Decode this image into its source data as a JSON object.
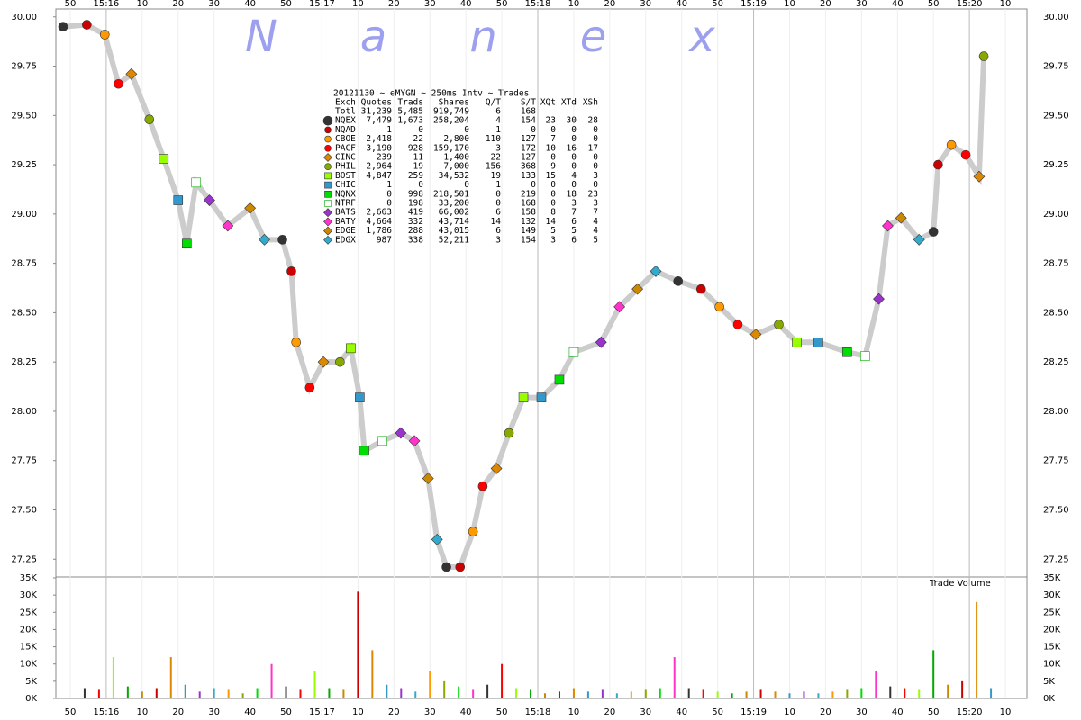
{
  "chart_data": {
    "type": "trades",
    "title": "20121130 ~ eMYGN ~ 250ms Intv ~ Trades",
    "watermark": "Nanex",
    "xlim": [
      46,
      316
    ],
    "xticks": [
      50,
      {
        "value": 60,
        "label": "15:16"
      },
      {
        "value": 70,
        "label": "10"
      },
      {
        "value": 80,
        "label": "20"
      },
      {
        "value": 90,
        "label": "30"
      },
      {
        "value": 100,
        "label": "40"
      },
      {
        "value": 110,
        "label": "50"
      },
      {
        "value": 120,
        "label": "15:17"
      },
      {
        "value": 130,
        "label": "10"
      },
      {
        "value": 140,
        "label": "20"
      },
      {
        "value": 150,
        "label": "30"
      },
      {
        "value": 160,
        "label": "40"
      },
      {
        "value": 170,
        "label": "50"
      },
      {
        "value": 180,
        "label": "15:18"
      },
      {
        "value": 190,
        "label": "10"
      },
      {
        "value": 200,
        "label": "20"
      },
      {
        "value": 210,
        "label": "30"
      },
      {
        "value": 220,
        "label": "40"
      },
      {
        "value": 230,
        "label": "50"
      },
      {
        "value": 240,
        "label": "15:19"
      },
      {
        "value": 250,
        "label": "10"
      },
      {
        "value": 260,
        "label": "20"
      },
      {
        "value": 270,
        "label": "30"
      },
      {
        "value": 280,
        "label": "40"
      },
      {
        "value": 290,
        "label": "50"
      },
      {
        "value": 300,
        "label": "15:20"
      },
      {
        "value": 310,
        "label": "10"
      }
    ],
    "grid": true,
    "price": {
      "ylim": [
        27.16,
        30.04
      ],
      "yticks": [
        {
          "value": 30,
          "label": "30.00"
        },
        29.75,
        {
          "value": 29.5,
          "label": "29.50"
        },
        29.25,
        {
          "value": 29,
          "label": "29.00"
        },
        28.75,
        {
          "value": 28.5,
          "label": "28.50"
        },
        28.25,
        {
          "value": 28,
          "label": "28.00"
        },
        27.75,
        {
          "value": 27.5,
          "label": "27.50"
        },
        27.25
      ],
      "x": [
        48,
        54.6,
        59.6,
        63.4,
        67,
        72,
        76,
        80,
        82.4,
        85,
        88.7,
        93.8,
        100,
        104,
        109,
        111.5,
        112.8,
        116.6,
        120.4,
        125,
        128,
        130.5,
        131.8,
        136.8,
        141.9,
        145.7,
        149.5,
        152,
        154.6,
        158.4,
        162,
        164.7,
        168.5,
        172,
        176,
        181,
        186,
        190,
        197.6,
        202.7,
        207.7,
        212.8,
        219,
        225.4,
        230.5,
        235.6,
        240.6,
        247,
        252,
        258,
        266,
        271,
        274.8,
        277.3,
        281,
        286,
        290,
        291.3,
        295,
        299,
        302.7,
        304
      ],
      "values": [
        29.95,
        29.96,
        29.91,
        29.66,
        29.71,
        29.48,
        29.28,
        29.07,
        28.85,
        29.16,
        29.07,
        28.94,
        29.03,
        28.87,
        28.87,
        28.71,
        28.35,
        28.12,
        28.25,
        28.25,
        28.32,
        28.07,
        27.8,
        27.85,
        27.89,
        27.85,
        27.66,
        27.35,
        27.21,
        27.21,
        27.39,
        27.62,
        27.71,
        27.89,
        28.07,
        28.07,
        28.16,
        28.3,
        28.35,
        28.53,
        28.62,
        28.71,
        28.66,
        28.62,
        28.53,
        28.44,
        28.39,
        28.44,
        28.35,
        28.35,
        28.3,
        28.28,
        28.57,
        28.94,
        28.98,
        28.87,
        28.91,
        29.25,
        29.35,
        29.3,
        29.19,
        29.8
      ]
    },
    "volume": {
      "label": "Trade Volume",
      "ylim": [
        0,
        35000
      ],
      "yticks": [
        {
          "value": 0,
          "label": "0K"
        },
        {
          "value": 5000,
          "label": "5K"
        },
        {
          "value": 10000,
          "label": "10K"
        },
        {
          "value": 15000,
          "label": "15K"
        },
        {
          "value": 20000,
          "label": "20K"
        },
        {
          "value": 25000,
          "label": "25K"
        },
        {
          "value": 30000,
          "label": "30K"
        },
        {
          "value": 35000,
          "label": "35K"
        }
      ],
      "x": [
        54,
        58,
        62,
        66,
        70,
        74,
        78,
        82,
        86,
        90,
        94,
        98,
        102,
        106,
        110,
        114,
        118,
        122,
        126,
        130,
        134,
        138,
        142,
        146,
        150,
        154,
        158,
        162,
        166,
        170,
        174,
        178,
        182,
        186,
        190,
        194,
        198,
        202,
        206,
        210,
        214,
        218,
        222,
        226,
        230,
        234,
        238,
        242,
        246,
        250,
        254,
        258,
        262,
        266,
        270,
        274,
        278,
        282,
        286,
        290,
        294,
        298,
        302,
        306
      ],
      "values": [
        3000,
        2500,
        12000,
        3500,
        2000,
        3000,
        12000,
        4000,
        2000,
        3000,
        2500,
        1500,
        3000,
        10000,
        3500,
        2500,
        8000,
        3000,
        2500,
        31000,
        14000,
        4000,
        3000,
        2000,
        8000,
        5000,
        3500,
        2500,
        4000,
        10000,
        3000,
        2500,
        1500,
        2000,
        3000,
        2000,
        2500,
        1500,
        2000,
        2500,
        3000,
        12000,
        3000,
        2500,
        2000,
        1500,
        2000,
        2500,
        2000,
        1500,
        2000,
        1500,
        2000,
        2500,
        3000,
        8000,
        3500,
        3000,
        2500,
        14000,
        4000,
        5000,
        28000,
        3000
      ]
    },
    "table": {
      "columns": [
        "Exch",
        "Quotes",
        "Trads",
        "Shares",
        "Q/T",
        "S/T",
        "XQt",
        "XTd",
        "XSh"
      ],
      "rows": [
        {
          "cells": [
            "Totl",
            "31,239",
            "5,485",
            "919,749",
            "6",
            "168"
          ]
        },
        {
          "cells": [
            "NQEX",
            "7,479",
            "1,673",
            "258,204",
            "4",
            "154",
            "23",
            "30",
            "28"
          ],
          "color": "#333333",
          "shape": "circle"
        },
        {
          "cells": [
            "NQAD",
            "1",
            "0",
            "0",
            "1",
            "0",
            "0",
            "0",
            "0"
          ],
          "color": "#cc0000",
          "shape": "circle"
        },
        {
          "cells": [
            "CBOE",
            "2,418",
            "22",
            "2,800",
            "110",
            "127",
            "7",
            "0",
            "0"
          ],
          "color": "#ff9900",
          "shape": "circle"
        },
        {
          "cells": [
            "PACF",
            "3,190",
            "928",
            "159,170",
            "3",
            "172",
            "10",
            "16",
            "17"
          ],
          "color": "#ff0000",
          "shape": "circle"
        },
        {
          "cells": [
            "CINC",
            "239",
            "11",
            "1,400",
            "22",
            "127",
            "0",
            "0",
            "0"
          ],
          "color": "#dd8800",
          "shape": "diamond"
        },
        {
          "cells": [
            "PHIL",
            "2,964",
            "19",
            "7,000",
            "156",
            "368",
            "9",
            "0",
            "0"
          ],
          "color": "#88aa00",
          "shape": "circle"
        },
        {
          "cells": [
            "BOST",
            "4,847",
            "259",
            "34,532",
            "19",
            "133",
            "15",
            "4",
            "3"
          ],
          "color": "#99ff00",
          "shape": "square"
        },
        {
          "cells": [
            "CHIC",
            "1",
            "0",
            "0",
            "1",
            "0",
            "0",
            "0",
            "0"
          ],
          "color": "#3399cc",
          "shape": "square"
        },
        {
          "cells": [
            "NQNX",
            "0",
            "998",
            "218,501",
            "0",
            "219",
            "0",
            "18",
            "23"
          ],
          "color": "#00dd00",
          "shape": "square"
        },
        {
          "cells": [
            "NTRF",
            "0",
            "198",
            "33,200",
            "0",
            "168",
            "0",
            "3",
            "3"
          ],
          "color": "#ffffff",
          "shape": "square"
        },
        {
          "cells": [
            "BATS",
            "2,663",
            "419",
            "66,002",
            "6",
            "158",
            "8",
            "7",
            "7"
          ],
          "color": "#9933cc",
          "shape": "diamond"
        },
        {
          "cells": [
            "BATY",
            "4,664",
            "332",
            "43,714",
            "14",
            "132",
            "14",
            "6",
            "4"
          ],
          "color": "#ff33cc",
          "shape": "diamond"
        },
        {
          "cells": [
            "EDGE",
            "1,786",
            "288",
            "43,015",
            "6",
            "149",
            "5",
            "5",
            "4"
          ],
          "color": "#cc8800",
          "shape": "diamond"
        },
        {
          "cells": [
            "EDGX",
            "987",
            "338",
            "52,211",
            "3",
            "154",
            "3",
            "6",
            "5"
          ],
          "color": "#33aacc",
          "shape": "diamond"
        }
      ]
    }
  }
}
